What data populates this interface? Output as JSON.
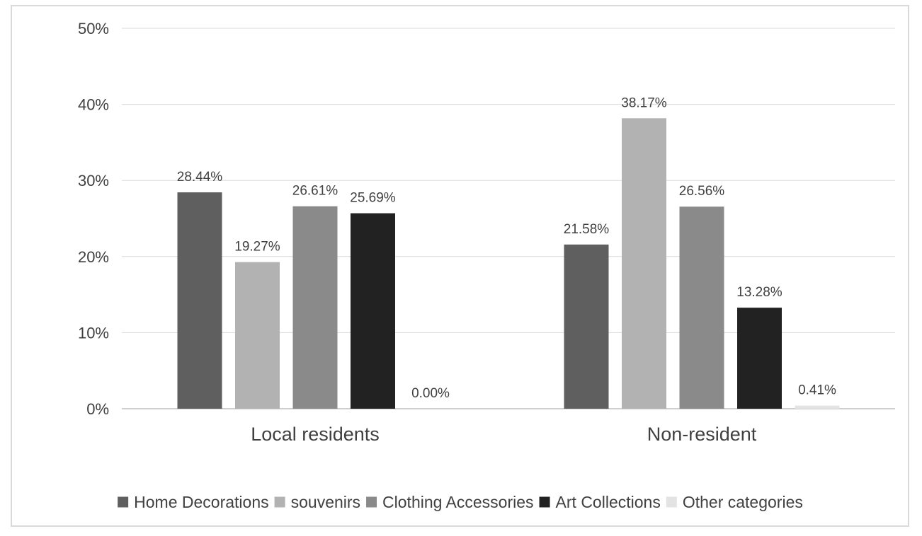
{
  "chart_data": {
    "type": "bar",
    "title": "",
    "xlabel": "",
    "ylabel": "",
    "ylim": [
      0,
      50
    ],
    "yticks": [
      0,
      10,
      20,
      30,
      40,
      50
    ],
    "ytick_labels": [
      "0%",
      "10%",
      "20%",
      "30%",
      "40%",
      "50%"
    ],
    "grid": true,
    "legend_position": "bottom",
    "categories": [
      "Local residents",
      "Non-resident"
    ],
    "series": [
      {
        "name": "Home Decorations",
        "color": "#5f5f5f",
        "values": [
          28.44,
          21.58
        ],
        "labels": [
          "28.44%",
          "21.58%"
        ]
      },
      {
        "name": "souvenirs",
        "color": "#b2b2b2",
        "values": [
          19.27,
          38.17
        ],
        "labels": [
          "19.27%",
          "38.17%"
        ]
      },
      {
        "name": "Clothing Accessories",
        "color": "#8a8a8a",
        "values": [
          26.61,
          26.56
        ],
        "labels": [
          "26.61%",
          "26.56%"
        ]
      },
      {
        "name": "Art Collections",
        "color": "#222222",
        "values": [
          25.69,
          13.28
        ],
        "labels": [
          "25.69%",
          "13.28%"
        ]
      },
      {
        "name": "Other categories",
        "color": "#e3e3e3",
        "values": [
          0.0,
          0.41
        ],
        "labels": [
          "0.00%",
          "0.41%"
        ]
      }
    ]
  }
}
